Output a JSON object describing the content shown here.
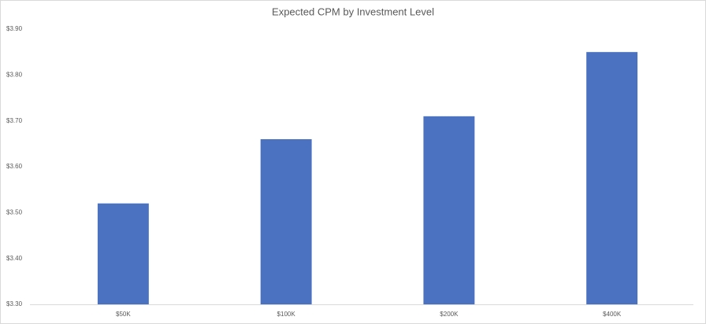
{
  "chart_data": {
    "type": "bar",
    "title": "Expected CPM by Investment Level",
    "categories": [
      "$50K",
      "$100K",
      "$200K",
      "$400K"
    ],
    "values": [
      3.52,
      3.66,
      3.71,
      3.85
    ],
    "color": "#4a72c0",
    "ylim": [
      3.3,
      3.9
    ],
    "yticks": [
      {
        "value": 3.3,
        "label": "$3.30"
      },
      {
        "value": 3.4,
        "label": "$3.40"
      },
      {
        "value": 3.5,
        "label": "$3.50"
      },
      {
        "value": 3.6,
        "label": "$3.60"
      },
      {
        "value": 3.7,
        "label": "$3.70"
      },
      {
        "value": 3.8,
        "label": "$3.80"
      },
      {
        "value": 3.9,
        "label": "$3.90"
      }
    ],
    "grid": false
  }
}
